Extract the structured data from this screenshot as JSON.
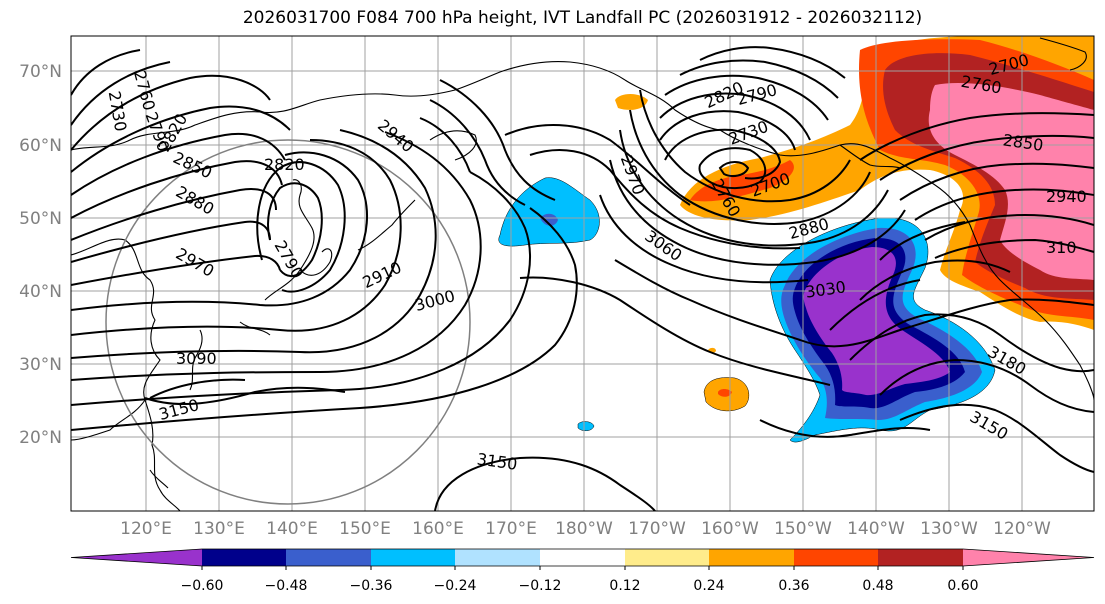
{
  "title": "2026031700 F084 700 hPa height, IVT Landfall PC (2026031912 - 2026032112)",
  "lat_labels": [
    "70°N",
    "60°N",
    "50°N",
    "40°N",
    "30°N",
    "20°N"
  ],
  "lon_labels": [
    "120°E",
    "130°E",
    "140°E",
    "150°E",
    "160°E",
    "170°E",
    "180°W",
    "170°W",
    "160°W",
    "150°W",
    "140°W",
    "130°W",
    "120°W"
  ],
  "contour_labels": [
    "2730",
    "2760",
    "2790",
    "2820",
    "2850",
    "2880",
    "2970",
    "2820",
    "2790",
    "2910",
    "3000",
    "3090",
    "3150",
    "2940",
    "2970",
    "3060",
    "3150",
    "2820",
    "2790",
    "2730",
    "2760",
    "2700",
    "2880",
    "3030",
    "3180",
    "3150",
    "2700",
    "2760",
    "2850",
    "2940",
    "310"
  ],
  "colorbar": {
    "ticks": [
      "−0.60",
      "−0.48",
      "−0.36",
      "−0.24",
      "−0.12",
      "0.12",
      "0.24",
      "0.36",
      "0.48",
      "0.60"
    ],
    "colors": [
      "#9932cc",
      "#00008b",
      "#3a5fcd",
      "#00bfff",
      "#b0e2ff",
      "#ffffff",
      "#ffec8b",
      "#ffa500",
      "#ff4500",
      "#b22222",
      "#ff82ab"
    ]
  }
}
